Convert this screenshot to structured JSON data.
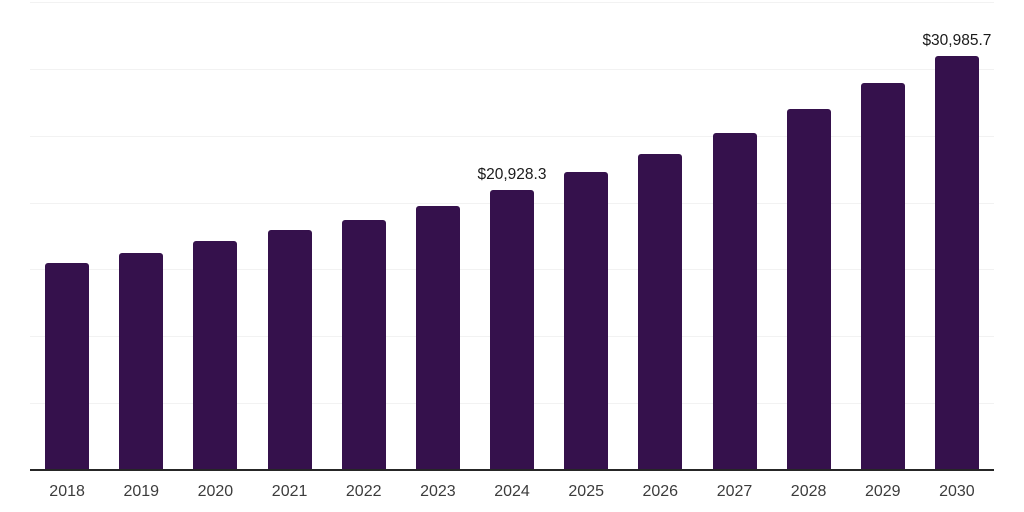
{
  "chart_data": {
    "type": "bar",
    "title": "",
    "xlabel": "",
    "ylabel": "",
    "categories": [
      "2018",
      "2019",
      "2020",
      "2021",
      "2022",
      "2023",
      "2024",
      "2025",
      "2026",
      "2027",
      "2028",
      "2029",
      "2030"
    ],
    "values": [
      15500,
      16200,
      17100,
      17950,
      18700,
      19750,
      20928.3,
      22300,
      23600,
      25200,
      27000,
      28950,
      30985.7
    ],
    "data_labels": {
      "2024": "$20,928.3",
      "2030": "$30,985.7"
    },
    "ylim": [
      0,
      35000
    ],
    "grid_step": 5000,
    "grid": "horizontal-only",
    "y_tick_labels": "none",
    "legend": "none",
    "colors": {
      "bar": "#35114C",
      "gridline": "#F2F2F2",
      "axis_line": "#262626",
      "tick_label": "#3C3C3C",
      "data_label": "#1A1A1A",
      "background": "#FFFFFF"
    }
  }
}
